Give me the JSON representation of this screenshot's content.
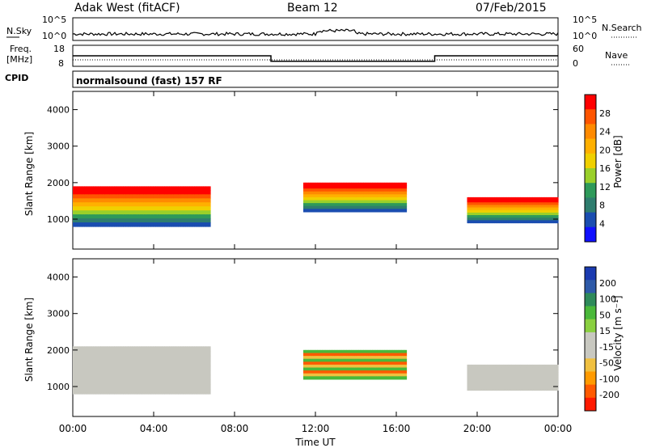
{
  "header": {
    "title": "Adak West (fitACF)",
    "beam": "Beam 12",
    "date": "07/Feb/2015"
  },
  "nsky_panel": {
    "left_label": "N.Sky",
    "left_ticks": [
      "10^5",
      "10^0"
    ],
    "right_label": "N.Search",
    "right_ticks": [
      "10^5",
      "10^0"
    ]
  },
  "freq_panel": {
    "left_label_1": "Freq.",
    "left_label_2": "[MHz]",
    "left_ticks": [
      "18",
      "8"
    ],
    "right_label": "Nave",
    "right_ticks": [
      "60",
      "0"
    ]
  },
  "cpid_panel": {
    "label": "CPID",
    "text": "normalsound (fast) 157 RF"
  },
  "power_panel": {
    "ylabel": "Slant Range [km]",
    "colorbar_label": "Power [dB]",
    "colorbar_ticks": [
      "28",
      "24",
      "20",
      "16",
      "12",
      "8",
      "4"
    ],
    "colorbar_colors": [
      "#ff0000",
      "#ff5500",
      "#ff8a00",
      "#ffb000",
      "#f0d000",
      "#9ad02a",
      "#2e9a5a",
      "#2e7d6e",
      "#1a4db0",
      "#1010ff"
    ]
  },
  "velocity_panel": {
    "ylabel": "Slant Range [km]",
    "colorbar_label": "Velocity [m s⁻¹]",
    "colorbar_ticks": [
      "200",
      "100",
      "50",
      "15",
      "-15",
      "-50",
      "-100",
      "-200"
    ],
    "colorbar_colors": [
      "#1a3ab0",
      "#2e5aa8",
      "#2e8a5a",
      "#4ab83a",
      "#8ad040",
      "#c8c8c0",
      "#c8c8c0",
      "#f0c040",
      "#ff9a00",
      "#ff5a00",
      "#ff1a00"
    ]
  },
  "xaxis": {
    "label": "Time UT",
    "ticks": [
      "00:00",
      "04:00",
      "08:00",
      "12:00",
      "16:00",
      "20:00",
      "00:00"
    ]
  },
  "chart_data": [
    {
      "type": "line",
      "name": "Frequency",
      "x_hours": [
        0,
        9.8,
        9.8,
        17.9,
        17.9,
        24
      ],
      "y": [
        13,
        13,
        10.4,
        10.4,
        13,
        13
      ],
      "ylim": [
        8,
        18
      ],
      "xlim": [
        0,
        24
      ]
    },
    {
      "type": "heatmap",
      "title": "Power",
      "xlim": [
        0,
        24
      ],
      "ylim": [
        180,
        4500
      ],
      "yticks": [
        1000,
        2000,
        3000,
        4000
      ],
      "regions": [
        {
          "x": [
            0,
            6.8
          ],
          "y": [
            800,
            1900
          ],
          "value": 24
        },
        {
          "x": [
            11.4,
            16.5
          ],
          "y": [
            1200,
            2000
          ],
          "value": 18
        },
        {
          "x": [
            19.5,
            24
          ],
          "y": [
            900,
            1600
          ],
          "value": 22
        }
      ]
    },
    {
      "type": "heatmap",
      "title": "Velocity",
      "xlim": [
        0,
        24
      ],
      "ylim": [
        180,
        4500
      ],
      "yticks": [
        1000,
        2000,
        3000,
        4000
      ],
      "regions": [
        {
          "x": [
            0,
            6.8
          ],
          "y": [
            800,
            2100
          ],
          "value": 0
        },
        {
          "x": [
            11.4,
            16.5
          ],
          "y": [
            1200,
            2000
          ],
          "value": -80
        },
        {
          "x": [
            19.5,
            24
          ],
          "y": [
            900,
            1600
          ],
          "value": 0
        }
      ]
    }
  ]
}
